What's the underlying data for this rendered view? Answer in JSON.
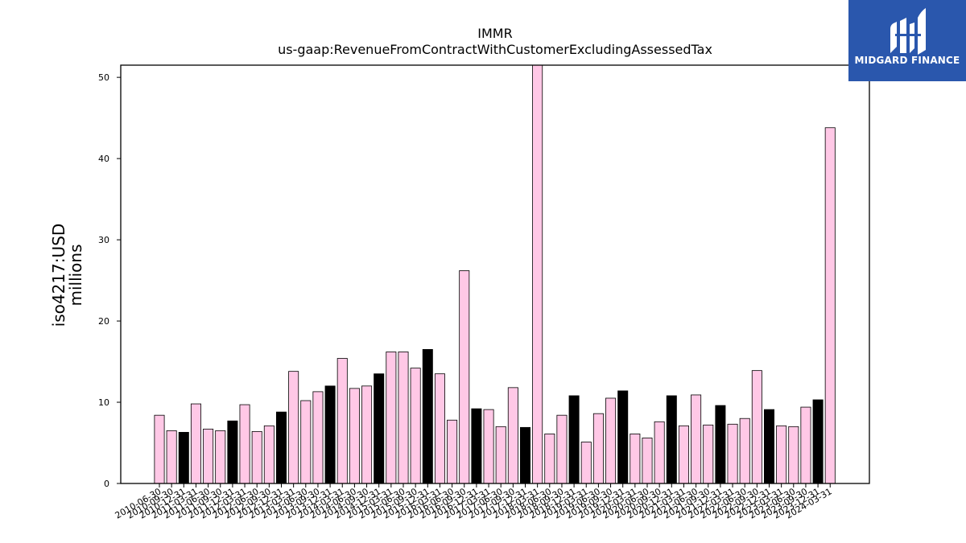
{
  "chart_data": {
    "type": "bar",
    "title": "IMMR",
    "subtitle": "us-gaap:RevenueFromContractWithCustomerExcludingAssessedTax",
    "ylabel_line1": "iso4217:USD",
    "ylabel_line2": "millions",
    "xlabel": "",
    "ylim": [
      0,
      51.5
    ],
    "yticks": [
      0,
      10,
      20,
      30,
      40,
      50
    ],
    "grid": false,
    "colors": {
      "quarterly": "#ffc8e6",
      "annual": "#000000",
      "edge": "#000000"
    },
    "categories": [
      "2010-06-30",
      "2010-09-30",
      "2010-12-31",
      "2011-03-31",
      "2011-06-30",
      "2011-09-30",
      "2011-12-31",
      "2012-03-31",
      "2012-06-30",
      "2012-09-30",
      "2012-12-31",
      "2013-03-31",
      "2013-06-30",
      "2013-09-30",
      "2013-12-31",
      "2014-03-31",
      "2014-06-30",
      "2014-09-30",
      "2014-12-31",
      "2015-03-31",
      "2015-06-30",
      "2015-09-30",
      "2015-12-31",
      "2016-03-31",
      "2016-06-30",
      "2016-09-30",
      "2016-12-31",
      "2017-03-31",
      "2017-06-30",
      "2017-09-30",
      "2017-12-31",
      "2018-03-31",
      "2018-06-30",
      "2018-09-30",
      "2018-12-31",
      "2019-03-31",
      "2019-06-30",
      "2019-09-30",
      "2019-12-31",
      "2020-03-31",
      "2020-06-30",
      "2020-09-30",
      "2020-12-31",
      "2021-03-31",
      "2021-06-30",
      "2021-09-30",
      "2021-12-31",
      "2022-03-31",
      "2022-06-30",
      "2022-09-30",
      "2022-12-31",
      "2023-03-31",
      "2023-06-30",
      "2023-09-30",
      "2023-12-31",
      "2024-03-31"
    ],
    "values": [
      8.4,
      6.5,
      6.3,
      9.8,
      6.7,
      6.5,
      7.7,
      9.7,
      6.4,
      7.1,
      8.8,
      13.8,
      10.2,
      11.3,
      12.0,
      15.4,
      11.7,
      12.0,
      13.5,
      16.2,
      16.2,
      14.2,
      16.5,
      13.5,
      7.8,
      26.2,
      9.2,
      9.1,
      7.0,
      11.8,
      6.9,
      52.0,
      6.1,
      8.4,
      10.8,
      5.1,
      8.6,
      10.5,
      11.4,
      6.1,
      5.6,
      7.6,
      10.8,
      7.1,
      10.9,
      7.2,
      9.6,
      7.3,
      8.0,
      13.9,
      9.1,
      7.1,
      7.0,
      9.4,
      10.3,
      43.8
    ],
    "annual": [
      false,
      false,
      true,
      false,
      false,
      false,
      true,
      false,
      false,
      false,
      true,
      false,
      false,
      false,
      true,
      false,
      false,
      false,
      true,
      false,
      false,
      false,
      true,
      false,
      false,
      false,
      true,
      false,
      false,
      false,
      true,
      false,
      false,
      false,
      true,
      false,
      false,
      false,
      true,
      false,
      false,
      false,
      true,
      false,
      false,
      false,
      true,
      false,
      false,
      false,
      true,
      false,
      false,
      false,
      true,
      false
    ]
  },
  "logo": {
    "text": "MIDGARD FINANCE",
    "icon": "midgard-logo-icon"
  }
}
